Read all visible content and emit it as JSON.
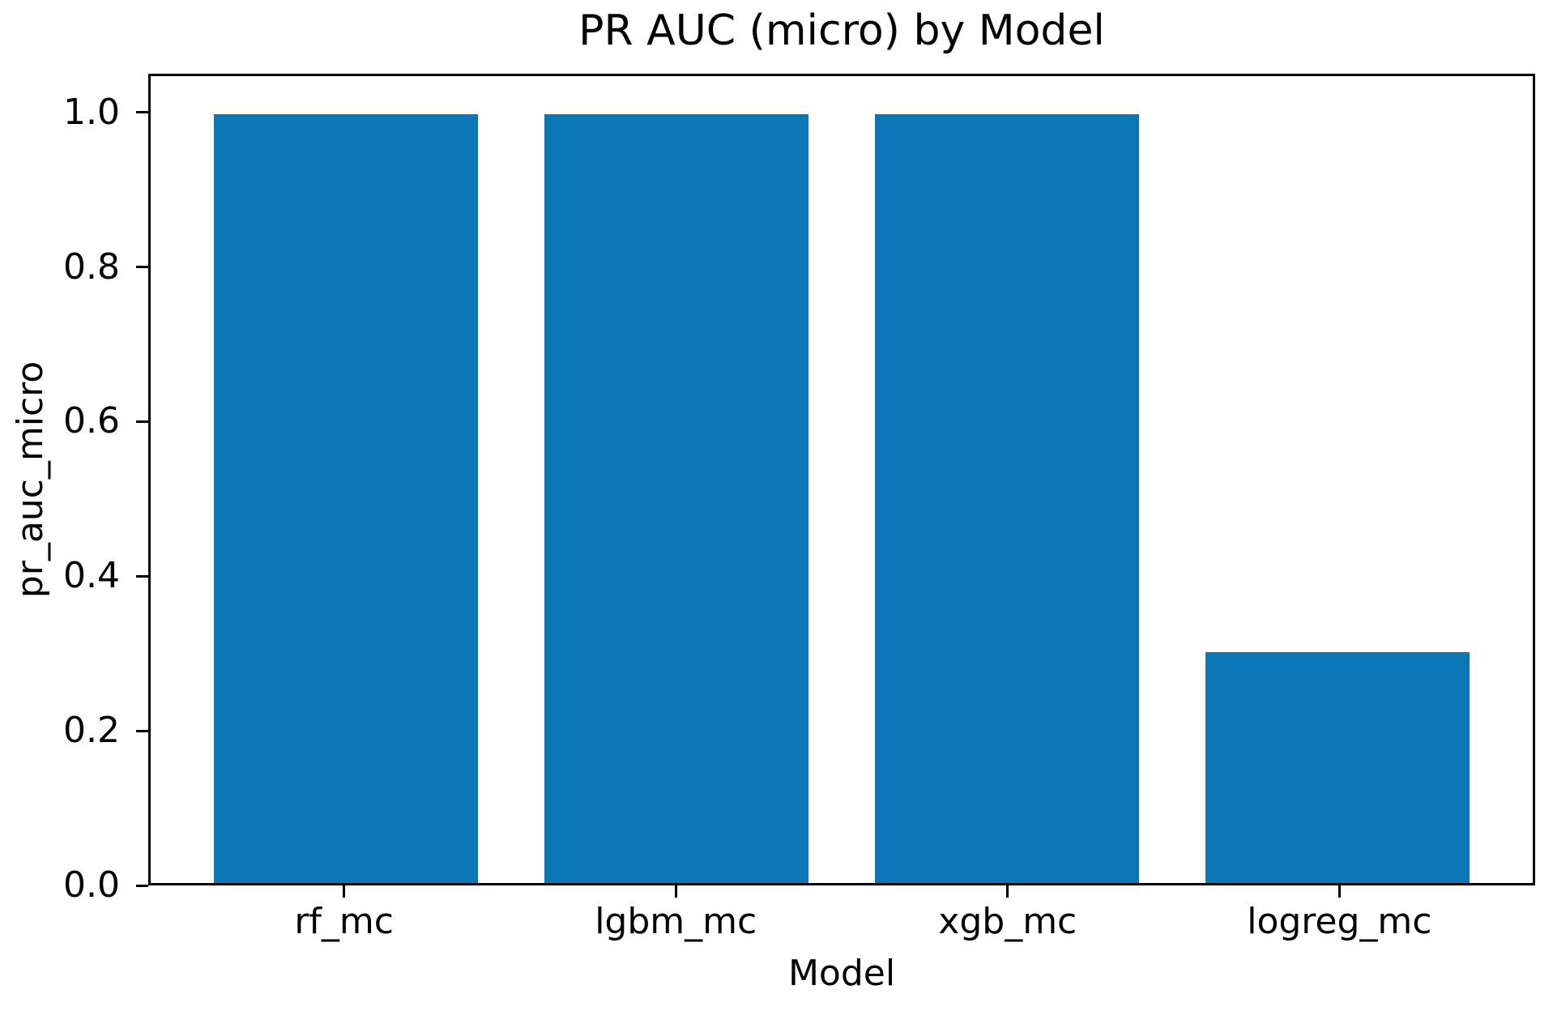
{
  "chart_data": {
    "type": "bar",
    "title": "PR AUC (micro) by Model",
    "xlabel": "Model",
    "ylabel": "pr_auc_micro",
    "categories": [
      "rf_mc",
      "lgbm_mc",
      "xgb_mc",
      "logreg_mc"
    ],
    "values": [
      1.0,
      1.0,
      1.0,
      0.3
    ],
    "ylim": [
      0,
      1.05
    ],
    "xlim": [
      -0.59,
      3.59
    ],
    "yticks": [
      0.0,
      0.2,
      0.4,
      0.6,
      0.8,
      1.0
    ],
    "ytick_labels": [
      "0.0",
      "0.2",
      "0.4",
      "0.6",
      "0.8",
      "1.0"
    ],
    "bar_width_data": 0.8,
    "bar_color": "#0c77b5",
    "spine_color": "#000000",
    "text_color": "#000000",
    "grid": false,
    "legend_position": "none"
  }
}
